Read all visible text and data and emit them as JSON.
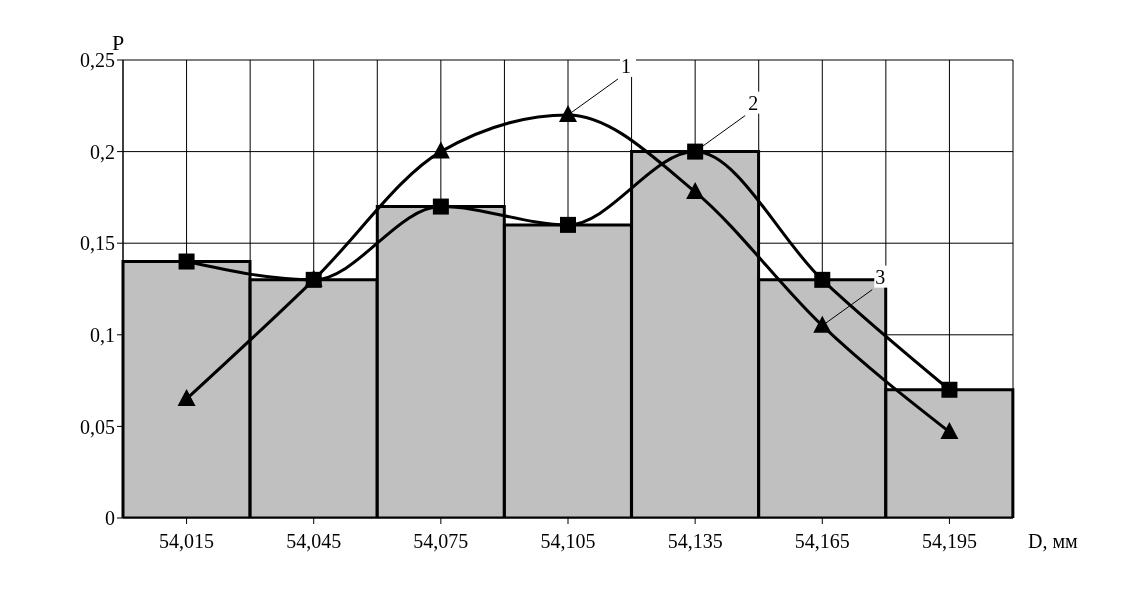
{
  "chart_data": {
    "type": "bar",
    "ylabel": "P",
    "xlabel": "D, мм",
    "categories": [
      "54,015",
      "54,045",
      "54,075",
      "54,105",
      "54,135",
      "54,165",
      "54,195"
    ],
    "series": [
      {
        "color": "#c0c0c0",
        "values": [
          0.14,
          0.13,
          0.17,
          0.16,
          0.2,
          0.13,
          0.07
        ]
      },
      {
        "type": "line",
        "color": "#000000",
        "marker": "square",
        "values": [
          0.14,
          0.13,
          0.17,
          0.16,
          0.2,
          0.13,
          0.07
        ]
      },
      {
        "type": "line",
        "color": "#000000",
        "marker": "triangle",
        "values": [
          0.065,
          0.13,
          0.2,
          0.22,
          0.178,
          0.105,
          0.047
        ]
      }
    ],
    "ylim": [
      0,
      0.25
    ],
    "yticks": [
      0,
      {
        "value": 0.05,
        "label": "0,05"
      },
      {
        "value": 0.1,
        "label": "0,1"
      },
      {
        "value": 0.15,
        "label": "0,15"
      },
      {
        "value": 0.2,
        "label": "0,2"
      },
      {
        "value": 0.25,
        "label": "0,25"
      }
    ],
    "grid": true,
    "legend": false,
    "annotations": [
      {
        "text": "1",
        "x": "54,105",
        "y": 0.22
      },
      {
        "text": "2",
        "x": "54,135",
        "y": 0.2
      },
      {
        "text": "3",
        "x": "54,165",
        "y": 0.105
      }
    ]
  }
}
